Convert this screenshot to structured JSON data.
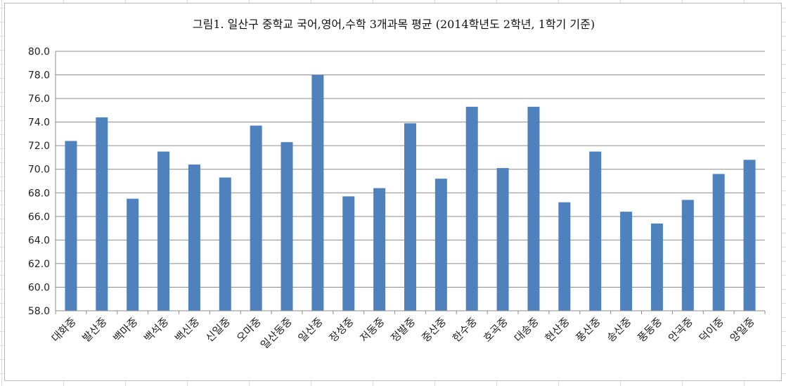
{
  "chart_data": {
    "type": "bar",
    "title": "그림1. 일산구 중학교 국어,영어,수학 3개과목 평균 (2014학년도 2학년, 1학기 기준)",
    "xlabel": "",
    "ylabel": "",
    "categories": [
      "대화중",
      "발산중",
      "백마중",
      "백석중",
      "백신중",
      "신일중",
      "오마중",
      "일산동중",
      "일산중",
      "장성중",
      "저동중",
      "정발중",
      "중산중",
      "한수중",
      "호곡중",
      "대송중",
      "현산중",
      "풍산중",
      "송산중",
      "풍동중",
      "안곡중",
      "덕이중",
      "양일중"
    ],
    "values": [
      72.4,
      74.4,
      67.5,
      71.5,
      70.4,
      69.3,
      73.7,
      72.3,
      78.0,
      67.7,
      68.4,
      73.9,
      69.2,
      75.3,
      70.1,
      75.3,
      67.2,
      71.5,
      66.4,
      65.4,
      67.4,
      69.6,
      70.8
    ],
    "ylim": [
      58.0,
      80.0
    ],
    "yticks": [
      "58.0",
      "60.0",
      "62.0",
      "64.0",
      "66.0",
      "68.0",
      "70.0",
      "72.0",
      "74.0",
      "76.0",
      "78.0",
      "80.0"
    ],
    "grid": true,
    "legend": "none",
    "bar_color": "#4f81bd",
    "grid_color": "#8c8c8c",
    "axis_color": "#8c8c8c"
  }
}
